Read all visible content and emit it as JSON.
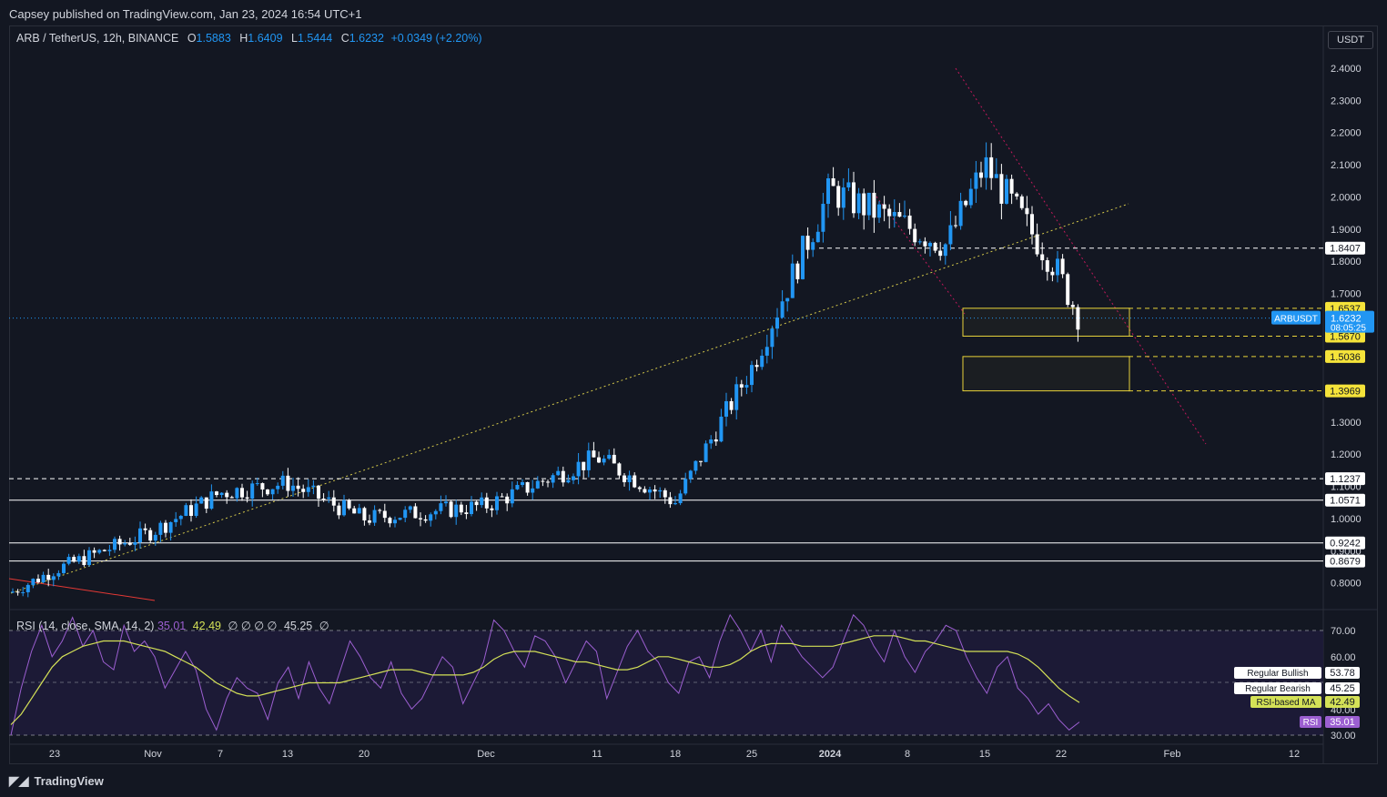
{
  "header": {
    "publisher": "Capsey published on TradingView.com, Jan 23, 2024 16:54 UTC+1"
  },
  "legend": {
    "symbol": "ARB / TetherUS, 12h, BINANCE",
    "o_label": "O",
    "o": "1.5883",
    "h_label": "H",
    "h": "1.6409",
    "l_label": "L",
    "l": "1.5444",
    "c_label": "C",
    "c": "1.6232",
    "change": "+0.0349 (+2.20%)"
  },
  "currency_button": "USDT",
  "rsi_legend": {
    "title": "RSI (14, close, SMA, 14, 2)",
    "rsi": "35.01",
    "ma": "42.49",
    "empties": "∅ ∅ ∅ ∅",
    "upper": "45.25",
    "last": "∅"
  },
  "footer": {
    "brand": "TradingView"
  },
  "colors": {
    "bg": "#131722",
    "up": "#2196f3",
    "down": "#ffffff",
    "rsi": "#9c5fd1",
    "rsi_ma": "#d4e157",
    "zone": "#e8d33a",
    "trend_red": "#c2185b"
  },
  "chart_data": {
    "type": "candlestick",
    "symbol": "ARBUSDT",
    "timeframe": "12h",
    "price_axis": {
      "ticks": [
        "2.4000",
        "2.3000",
        "2.2000",
        "2.1000",
        "2.0000",
        "1.9000",
        "1.8000",
        "1.7000",
        "1.3000",
        "1.2000",
        "1.1000",
        "1.0000",
        "0.9000",
        "0.8000"
      ]
    },
    "time_axis": {
      "ticks": [
        "23",
        "Nov",
        "7",
        "13",
        "20",
        "Dec",
        "11",
        "18",
        "25",
        "2024",
        "8",
        "15",
        "22",
        "Feb",
        "12"
      ]
    },
    "x_dates": [
      "2023-10-19",
      "2023-10-23",
      "2023-11-01",
      "2023-11-07",
      "2023-11-13",
      "2023-11-20",
      "2023-12-01",
      "2023-12-11",
      "2023-12-18",
      "2023-12-25",
      "2024-01-01",
      "2024-01-08",
      "2024-01-15",
      "2024-01-22",
      "2024-01-23"
    ],
    "closes": [
      0.77,
      0.84,
      0.96,
      1.08,
      1.11,
      1.0,
      1.04,
      1.19,
      1.05,
      1.47,
      2.02,
      1.85,
      2.1,
      1.78,
      1.6232
    ],
    "last_price": {
      "label": "ARBUSDT",
      "value": "1.6232",
      "countdown": "08:05:25"
    },
    "levels": [
      {
        "value": "1.8407",
        "style": "dashed",
        "color": "#ffffff"
      },
      {
        "value": "1.6537",
        "style": "dashed",
        "color": "#e8d33a"
      },
      {
        "value": "1.5670",
        "style": "dashed",
        "color": "#e8d33a"
      },
      {
        "value": "1.5036",
        "style": "dashed",
        "color": "#e8d33a"
      },
      {
        "value": "1.3969",
        "style": "dashed",
        "color": "#e8d33a"
      },
      {
        "value": "1.1237",
        "style": "dashed",
        "color": "#ffffff"
      },
      {
        "value": "1.0571",
        "style": "solid",
        "color": "#ffffff"
      },
      {
        "value": "0.9242",
        "style": "solid",
        "color": "#ffffff"
      },
      {
        "value": "0.8679",
        "style": "solid",
        "color": "#ffffff"
      }
    ],
    "zones": [
      {
        "from": "1.5670",
        "to": "1.6537"
      },
      {
        "from": "1.3969",
        "to": "1.5036"
      }
    ],
    "rsi": {
      "axis_ticks": [
        "70.00",
        "60.00",
        "40.00",
        "30.00"
      ],
      "tags": [
        {
          "label": "Regular Bullish",
          "value": "53.78"
        },
        {
          "label": "Regular Bearish",
          "value": "45.25"
        },
        {
          "label": "RSI-based MA",
          "value": "42.49"
        },
        {
          "label": "RSI",
          "value": "35.01"
        }
      ],
      "rsi_values": [
        30,
        48,
        62,
        72,
        60,
        66,
        75,
        64,
        70,
        58,
        55,
        72,
        62,
        66,
        60,
        48,
        55,
        62,
        55,
        40,
        32,
        44,
        52,
        48,
        46,
        36,
        50,
        56,
        44,
        58,
        48,
        42,
        54,
        66,
        60,
        52,
        48,
        58,
        46,
        40,
        44,
        52,
        60,
        56,
        42,
        50,
        58,
        74,
        70,
        62,
        56,
        68,
        66,
        60,
        50,
        58,
        66,
        62,
        44,
        54,
        64,
        70,
        62,
        58,
        50,
        46,
        58,
        60,
        52,
        66,
        76,
        70,
        62,
        70,
        58,
        72,
        66,
        60,
        56,
        52,
        56,
        66,
        76,
        72,
        64,
        58,
        70,
        60,
        54,
        62,
        66,
        72,
        70,
        60,
        52,
        46,
        56,
        60,
        48,
        44,
        38,
        42,
        36,
        32,
        35
      ],
      "ma_values": [
        34,
        38,
        44,
        50,
        56,
        60,
        62,
        64,
        65,
        66,
        66,
        66,
        65,
        64,
        63,
        62,
        60,
        58,
        56,
        53,
        50,
        48,
        46,
        45,
        45,
        46,
        47,
        48,
        49,
        50,
        50,
        50,
        50,
        51,
        52,
        53,
        54,
        55,
        55,
        55,
        54,
        53,
        53,
        53,
        53,
        54,
        56,
        59,
        61,
        62,
        62,
        62,
        61,
        60,
        59,
        58,
        58,
        57,
        56,
        55,
        55,
        56,
        58,
        60,
        60,
        59,
        58,
        57,
        56,
        56,
        57,
        59,
        62,
        64,
        65,
        65,
        65,
        64,
        64,
        64,
        64,
        65,
        66,
        67,
        68,
        68,
        68,
        67,
        66,
        66,
        65,
        64,
        63,
        62,
        62,
        62,
        62,
        62,
        61,
        59,
        56,
        52,
        48,
        45,
        42.49
      ]
    }
  }
}
